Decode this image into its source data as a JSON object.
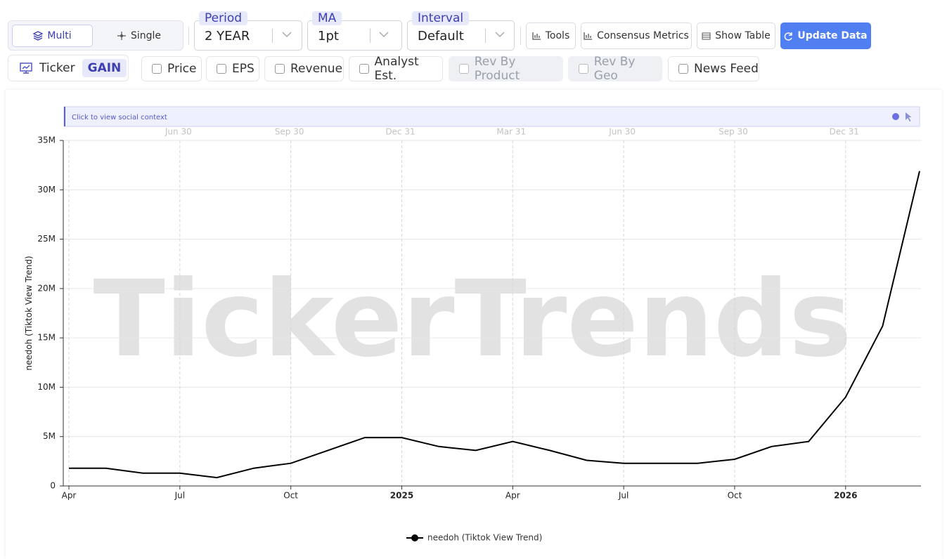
{
  "toolbar": {
    "mode": [
      "Multi",
      "Single"
    ],
    "selects": [
      {
        "label": "Period",
        "value": "2 YEAR"
      },
      {
        "label": "MA",
        "value": "1pt"
      },
      {
        "label": "Interval",
        "value": "Default"
      }
    ],
    "buttons": [
      "Tools",
      "Consensus Metrics",
      "Show Table",
      "Update Data"
    ],
    "ticker": {
      "label": "Ticker",
      "value": "GAIN"
    },
    "toggles": [
      "Price",
      "EPS",
      "Revenue",
      "Analyst Est.",
      "Rev By Product",
      "Rev By Geo",
      "News Feed"
    ]
  },
  "banner": "Click to view social context",
  "watermark": "TickerTrends",
  "chart_data": {
    "type": "line",
    "y_label": "needoh  (Tiktok View Trend)",
    "x": [
      "2024-04",
      "2024-05",
      "2024-06",
      "2024-07",
      "2024-08",
      "2024-09",
      "2024-10",
      "2024-11",
      "2024-12",
      "2025-01",
      "2025-02",
      "2025-03",
      "2025-04",
      "2025-05",
      "2025-06",
      "2025-07",
      "2025-08",
      "2025-09",
      "2025-10",
      "2025-11",
      "2025-12",
      "2026-01",
      "2026-02",
      "2026-03"
    ],
    "series": [
      {
        "name": "needoh  (Tiktok View Trend)",
        "color": "#000000",
        "values": [
          1800000,
          1800000,
          1300000,
          1300000,
          850000,
          1800000,
          2300000,
          3600000,
          4900000,
          4900000,
          4000000,
          3600000,
          4500000,
          3600000,
          2600000,
          2300000,
          2300000,
          2300000,
          2700000,
          4000000,
          4500000,
          9000000,
          16200000,
          31900000
        ]
      }
    ],
    "xlim": [
      "2024-04",
      "2026-03"
    ],
    "xticks": [
      {
        "value": "2024-04",
        "label": "Apr"
      },
      {
        "value": "2024-07",
        "label": "Jul"
      },
      {
        "value": "2024-10",
        "label": "Oct"
      },
      {
        "value": "2025-01",
        "label": "2025"
      },
      {
        "value": "2025-04",
        "label": "Apr"
      },
      {
        "value": "2025-07",
        "label": "Jul"
      },
      {
        "value": "2025-10",
        "label": "Oct"
      },
      {
        "value": "2026-01",
        "label": "2026"
      }
    ],
    "top_axis_labels": [
      "Jun 30",
      "Sep 30",
      "Dec 31",
      "Mar 31",
      "Jun 30",
      "Sep 30",
      "Dec 31"
    ],
    "ylim": [
      0,
      35000000
    ],
    "yticks": [
      0,
      {
        "value": 5000000,
        "label": "5M"
      },
      {
        "value": 10000000,
        "label": "10M"
      },
      {
        "value": 15000000,
        "label": "15M"
      },
      {
        "value": 20000000,
        "label": "20M"
      },
      {
        "value": 25000000,
        "label": "25M"
      },
      {
        "value": 30000000,
        "label": "30M"
      },
      {
        "value": 35000000,
        "label": "35M"
      }
    ],
    "grid": true
  }
}
